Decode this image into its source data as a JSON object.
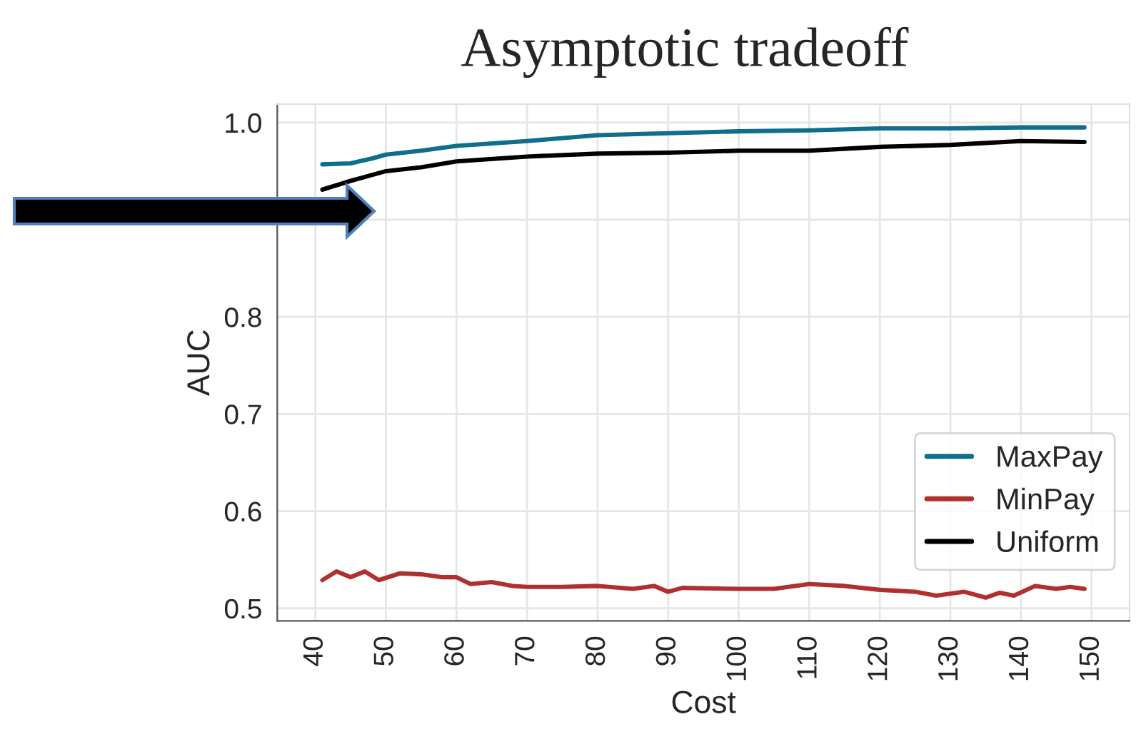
{
  "chart_data": {
    "type": "line",
    "title": "Asymptotic tradeoff",
    "xlabel": "Cost",
    "ylabel": "AUC",
    "xlim": [
      34.6,
      155.4
    ],
    "xticks": [
      40,
      50,
      60,
      70,
      80,
      90,
      100,
      110,
      120,
      130,
      140,
      150
    ],
    "ylim": [
      0.487,
      1.019
    ],
    "yticks": [
      0.5,
      0.6,
      0.7,
      0.8,
      {
        "value": 0.9,
        "label": null
      },
      {
        "value": 1.0,
        "label": "1.0"
      }
    ],
    "grid": true,
    "legend": "bottom right",
    "line_style": "solid",
    "marker": "none",
    "series": [
      {
        "name": "MaxPay",
        "color": "#0e6e8c",
        "x": [
          41,
          45,
          48,
          50,
          55,
          60,
          70,
          80,
          90,
          100,
          110,
          120,
          130,
          140,
          149
        ],
        "values": [
          0.957,
          0.958,
          0.963,
          0.967,
          0.971,
          0.976,
          0.981,
          0.987,
          0.989,
          0.991,
          0.992,
          0.994,
          0.994,
          0.995,
          0.995
        ]
      },
      {
        "name": "MinPay",
        "color": "#b03030",
        "x": [
          41,
          43,
          45,
          47,
          49,
          52,
          55,
          58,
          60,
          62,
          65,
          68,
          70,
          75,
          80,
          85,
          88,
          90,
          92,
          100,
          105,
          110,
          115,
          120,
          125,
          128,
          132,
          135,
          137,
          139,
          142,
          145,
          147,
          149
        ],
        "values": [
          0.529,
          0.538,
          0.532,
          0.538,
          0.529,
          0.536,
          0.535,
          0.532,
          0.532,
          0.525,
          0.527,
          0.523,
          0.522,
          0.522,
          0.523,
          0.52,
          0.523,
          0.517,
          0.521,
          0.52,
          0.52,
          0.525,
          0.523,
          0.519,
          0.517,
          0.513,
          0.517,
          0.511,
          0.516,
          0.513,
          0.523,
          0.52,
          0.522,
          0.52
        ]
      },
      {
        "name": "Uniform",
        "color": "#000000",
        "x": [
          41,
          45,
          50,
          55,
          60,
          70,
          80,
          90,
          100,
          110,
          120,
          130,
          140,
          149
        ],
        "values": [
          0.931,
          0.94,
          0.95,
          0.954,
          0.96,
          0.965,
          0.968,
          0.969,
          0.971,
          0.971,
          0.975,
          0.977,
          0.981,
          0.98
        ]
      }
    ]
  }
}
